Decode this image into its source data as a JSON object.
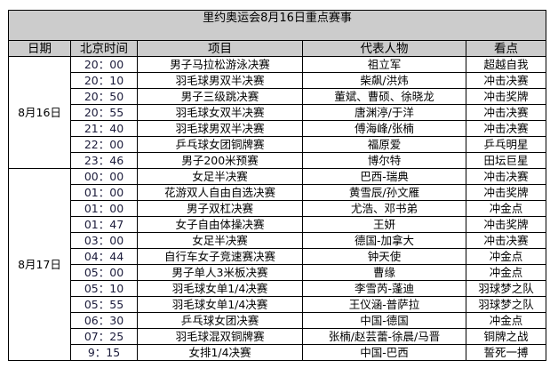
{
  "title": "里约奥运会8月16日重点赛事",
  "headers": [
    "日期",
    "北京时间",
    "项目",
    "代表人物",
    "看点"
  ],
  "groups": [
    {
      "date": "8月16日",
      "rows": [
        {
          "time": "20：00",
          "event": "男子马拉松游泳决赛",
          "people": "祖立军",
          "highlight": "超越自我"
        },
        {
          "time": "20：10",
          "event": "羽毛球男双半决赛",
          "people": "柴飙/洪炜",
          "highlight": "冲击决赛"
        },
        {
          "time": "20：50",
          "event": "男子三级跳决赛",
          "people": "董斌、曹硕、徐晓龙",
          "highlight": "冲击奖牌"
        },
        {
          "time": "20：55",
          "event": "羽毛球女双半决赛",
          "people": "唐渊渟/于洋",
          "highlight": "冲击决赛"
        },
        {
          "time": "21：40",
          "event": "羽毛球男双半决赛",
          "people": "傅海峰/张楠",
          "highlight": "冲击决赛"
        },
        {
          "time": "22：00",
          "event": "乒乓球女团铜牌赛",
          "people": "福原爱",
          "highlight": "乒乓明星"
        },
        {
          "time": "23：46",
          "event": "男子200米预赛",
          "people": "博尔特",
          "highlight": "田坛巨星"
        }
      ]
    },
    {
      "date": "8月17日",
      "rows": [
        {
          "time": "00：00",
          "event": "女足半决赛",
          "people": "巴西-瑞典",
          "highlight": "冲击决赛"
        },
        {
          "time": "01：00",
          "event": "花游双人自由自选决赛",
          "people": "黄雪辰/孙文雁",
          "highlight": "冲击奖牌"
        },
        {
          "time": "01：00",
          "event": "男子双杠决赛",
          "people": "尤浩、邓书弟",
          "highlight": "冲金点"
        },
        {
          "time": "01：47",
          "event": "女子自由体操决赛",
          "people": "王妍",
          "highlight": "冲击奖牌"
        },
        {
          "time": "03：00",
          "event": "女足半决赛",
          "people": "德国-加拿大",
          "highlight": "冲击决赛"
        },
        {
          "time": "04：44",
          "event": "自行车女子竞速赛决赛",
          "people": "钟天使",
          "highlight": "冲金点"
        },
        {
          "time": "05：00",
          "event": "男子单人3米板决赛",
          "people": "曹缘",
          "highlight": "冲金点"
        },
        {
          "time": "05：10",
          "event": "羽毛球女单1/4决赛",
          "people": "李雪芮-蓬迪",
          "highlight": "羽球梦之队"
        },
        {
          "time": "05：55",
          "event": "羽毛球女单1/4决赛",
          "people": "王仪涵-普萨拉",
          "highlight": "羽球梦之队"
        },
        {
          "time": "06：30",
          "event": "乒乓球女团决赛",
          "people": "中国-德国",
          "highlight": "冲金点"
        },
        {
          "time": "07：25",
          "event": "羽毛球混双铜牌赛",
          "people": "张楠/赵芸蕾-徐晨/马晋",
          "highlight": "铜牌之战"
        },
        {
          "time": "9：15",
          "event": "女排1/4决赛",
          "people": "中国-巴西",
          "highlight": "誓死一搏"
        }
      ]
    }
  ]
}
